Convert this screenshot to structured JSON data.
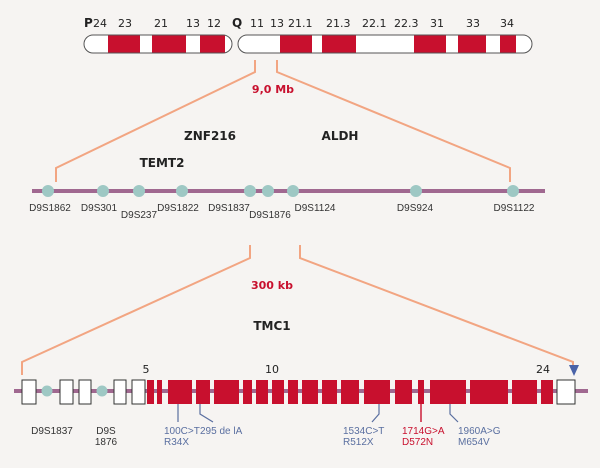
{
  "chromosome": {
    "p_label": "P",
    "q_label": "Q",
    "p_bands": [
      "24",
      "23",
      "21",
      "13",
      "12"
    ],
    "q_bands": [
      "11",
      "13",
      "21.1",
      "21.3",
      "22.1",
      "22.3",
      "31",
      "33",
      "34"
    ]
  },
  "region_mb": {
    "label": "9,0 Mb"
  },
  "genes_top": [
    "ZNF216",
    "ALDH",
    "TEMT2"
  ],
  "markers": [
    "D9S1862",
    "D9S301",
    "D9S237",
    "D9S1822",
    "D9S1837",
    "D9S1876",
    "D9S1124",
    "D9S924",
    "D9S1122"
  ],
  "region_kb": {
    "label": "300 kb",
    "gene": "TMC1"
  },
  "exon_numbers": [
    "5",
    "10",
    "24"
  ],
  "gene_markers": [
    "D9S1837",
    "D9S\n1876"
  ],
  "mutations": [
    {
      "line1": "100C>T",
      "line2": "R34X"
    },
    {
      "line1": "295 de lA",
      "line2": ""
    },
    {
      "line1": "1534C>T",
      "line2": "R512X"
    },
    {
      "line1": "1714G>A",
      "line2": "D572N"
    },
    {
      "line1": "1960A>G",
      "line2": "M654V"
    }
  ],
  "colors": {
    "accent_red": "#c8102e",
    "line_purple": "#a06890",
    "connector_orange": "#f2a582",
    "marker_teal": "#9ec8c4",
    "mutation_blue": "#5a6fa0",
    "triangle_blue": "#4a63a8"
  }
}
